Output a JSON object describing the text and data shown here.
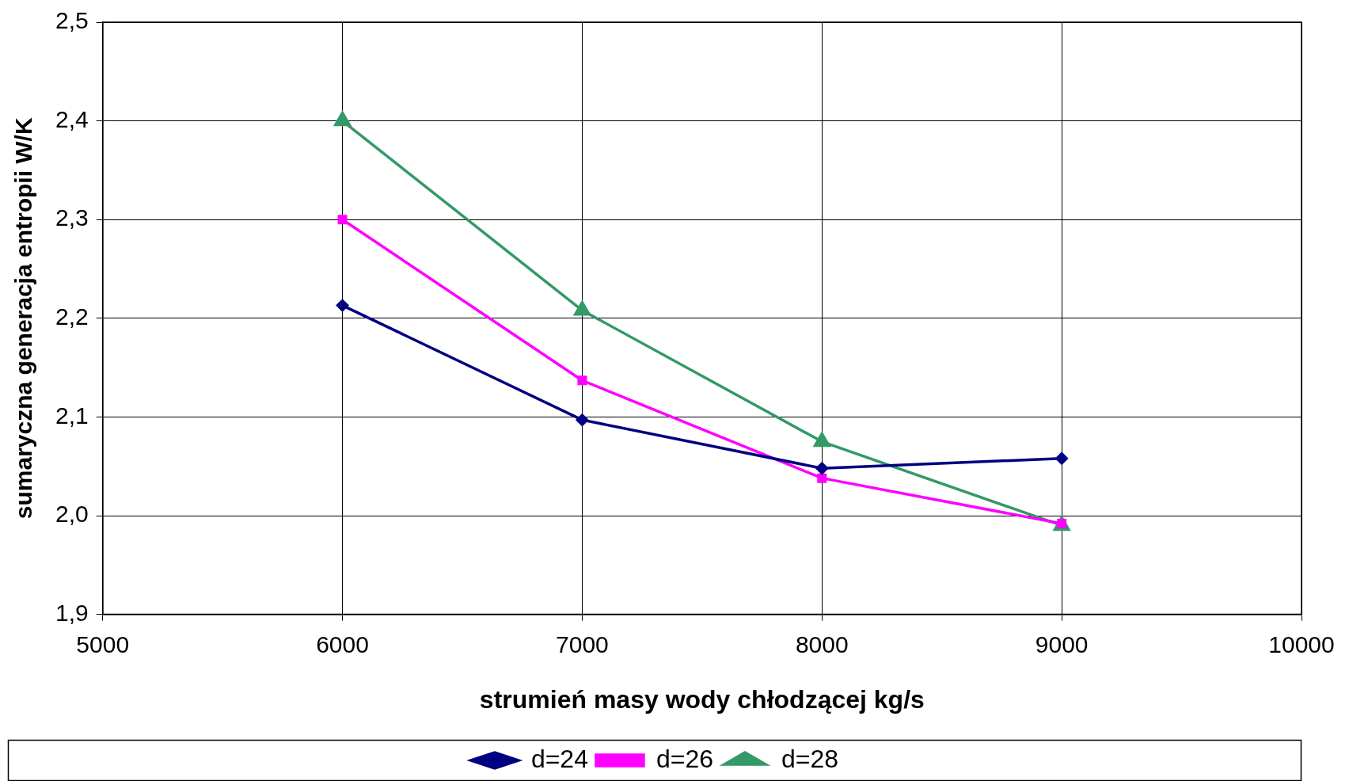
{
  "chart_data": {
    "type": "line",
    "xlabel": "strumień masy wody chłodzącej kg/s",
    "ylabel": "sumaryczna generacja entropii W/K",
    "x": [
      6000,
      7000,
      8000,
      9000
    ],
    "series": [
      {
        "name": "d=24",
        "color": "#000080",
        "marker": "diamond",
        "values": [
          2.213,
          2.097,
          2.048,
          2.058
        ]
      },
      {
        "name": "d=26",
        "color": "#ff00ff",
        "marker": "square",
        "values": [
          2.3,
          2.137,
          2.038,
          1.992
        ]
      },
      {
        "name": "d=28",
        "color": "#339966",
        "marker": "triangle",
        "values": [
          2.4,
          2.208,
          2.075,
          1.99
        ]
      }
    ],
    "xlim": [
      5000,
      10000
    ],
    "xticks": [
      5000,
      6000,
      7000,
      8000,
      9000,
      10000
    ],
    "ylim": [
      1.9,
      2.5
    ],
    "yticks": [
      {
        "value": 1.9,
        "label": "1,9"
      },
      {
        "value": 2.0,
        "label": "2,0"
      },
      {
        "value": 2.1,
        "label": "2,1"
      },
      {
        "value": 2.2,
        "label": "2,2"
      },
      {
        "value": 2.3,
        "label": "2,3"
      },
      {
        "value": 2.4,
        "label": "2,4"
      },
      {
        "value": 2.5,
        "label": "2,5"
      }
    ],
    "grid": true,
    "legend": "bottom",
    "line_style": "solid"
  }
}
